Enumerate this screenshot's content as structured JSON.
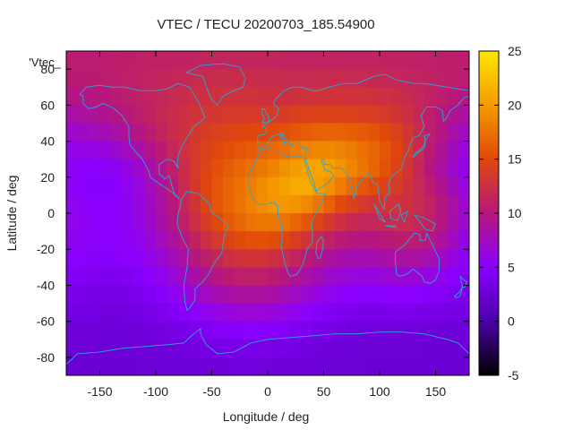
{
  "chart_data": {
    "type": "heatmap",
    "title": "VTEC / TECU 20200703_185.54900",
    "legend_label": "'Vtec_",
    "xlabel": "Longitude / deg",
    "ylabel": "Latitude / deg",
    "xlim": [
      -180,
      180
    ],
    "ylim": [
      -90,
      90
    ],
    "x_ticks": [
      -150,
      -100,
      -50,
      0,
      50,
      100,
      150
    ],
    "y_ticks": [
      -80,
      -60,
      -40,
      -20,
      0,
      20,
      40,
      60,
      80
    ],
    "colorbar": {
      "range": [
        -5,
        25
      ],
      "ticks": [
        -5,
        0,
        5,
        10,
        15,
        20,
        25
      ],
      "palette": [
        "#000000",
        "#4b00a8",
        "#8a00ff",
        "#b7177a",
        "#e0480a",
        "#f59a00",
        "#ffe800"
      ]
    },
    "value_grid": {
      "lat": [
        85,
        75,
        65,
        55,
        45,
        35,
        25,
        15,
        5,
        -5,
        -15,
        -25,
        -35,
        -45,
        -55,
        -65,
        -75,
        -85
      ],
      "lon": [
        -175,
        -165,
        -155,
        -145,
        -135,
        -125,
        -115,
        -105,
        -95,
        -85,
        -75,
        -65,
        -55,
        -45,
        -35,
        -25,
        -15,
        -5,
        5,
        15,
        25,
        35,
        45,
        55,
        65,
        75,
        85,
        95,
        105,
        115,
        125,
        135,
        145,
        155,
        165,
        175
      ],
      "z": [
        [
          10.5,
          10.5,
          10.5,
          10.5,
          10.6,
          10.7,
          10.8,
          10.9,
          10.9,
          11.0,
          11.1,
          11.2,
          11.3,
          11.3,
          11.4,
          11.4,
          11.4,
          11.3,
          11.3,
          11.2,
          11.2,
          11.2,
          11.2,
          11.2,
          11.2,
          11.2,
          11.2,
          11.2,
          11.1,
          11.1,
          11.0,
          10.9,
          10.8,
          10.7,
          10.6,
          10.6
        ],
        [
          10.4,
          10.3,
          10.4,
          10.5,
          10.6,
          10.8,
          11.0,
          11.2,
          11.3,
          11.5,
          11.7,
          11.9,
          12.0,
          12.1,
          12.1,
          12.1,
          12.1,
          12.0,
          11.9,
          11.9,
          11.8,
          11.8,
          11.9,
          11.9,
          11.9,
          11.8,
          11.8,
          11.7,
          11.6,
          11.5,
          11.4,
          11.3,
          11.1,
          10.9,
          10.7,
          10.5
        ],
        [
          9.5,
          9.6,
          9.8,
          10.0,
          10.3,
          10.6,
          10.9,
          11.2,
          11.5,
          11.8,
          12.1,
          12.4,
          12.5,
          12.7,
          12.8,
          12.8,
          12.8,
          12.7,
          12.6,
          12.6,
          12.7,
          12.8,
          12.9,
          12.9,
          12.9,
          12.9,
          12.9,
          12.7,
          12.5,
          12.3,
          11.9,
          11.5,
          11.0,
          10.6,
          10.1,
          9.7
        ],
        [
          8.3,
          8.6,
          8.9,
          9.2,
          9.6,
          10.1,
          10.6,
          11.1,
          11.6,
          12.1,
          12.5,
          12.9,
          13.2,
          13.4,
          13.5,
          13.6,
          13.6,
          13.6,
          13.7,
          13.8,
          14.1,
          14.3,
          14.4,
          14.4,
          14.3,
          14.3,
          14.1,
          13.9,
          13.6,
          13.1,
          12.4,
          11.6,
          10.8,
          10.0,
          9.2,
          8.6
        ],
        [
          7.0,
          7.2,
          7.5,
          7.9,
          8.4,
          9.0,
          9.7,
          10.5,
          11.3,
          12.0,
          12.7,
          13.3,
          13.8,
          14.2,
          14.5,
          14.7,
          14.8,
          14.9,
          15.1,
          15.5,
          15.9,
          16.3,
          16.6,
          16.7,
          16.6,
          16.4,
          16.1,
          15.6,
          15.0,
          14.2,
          13.2,
          12.0,
          10.7,
          9.6,
          8.4,
          7.5
        ],
        [
          5.9,
          5.9,
          6.0,
          6.3,
          6.8,
          7.5,
          8.3,
          9.3,
          10.4,
          11.5,
          12.5,
          13.5,
          14.2,
          14.9,
          15.4,
          15.8,
          16.1,
          16.5,
          16.9,
          17.4,
          18.1,
          18.6,
          18.9,
          18.9,
          18.6,
          18.2,
          17.5,
          16.8,
          15.9,
          14.8,
          13.5,
          12.0,
          10.4,
          8.9,
          7.6,
          6.5
        ],
        [
          5.3,
          5.1,
          5.0,
          5.2,
          5.5,
          6.2,
          7.0,
          8.1,
          9.4,
          10.8,
          12.2,
          13.5,
          14.5,
          15.5,
          16.2,
          16.8,
          17.4,
          17.9,
          18.6,
          19.4,
          20.1,
          20.6,
          20.7,
          20.3,
          19.6,
          18.7,
          17.7,
          16.7,
          15.6,
          14.4,
          13.1,
          11.6,
          10.0,
          8.5,
          7.1,
          6.0
        ],
        [
          5.3,
          5.0,
          4.8,
          4.8,
          5.1,
          5.6,
          6.4,
          7.5,
          8.8,
          10.3,
          11.9,
          13.4,
          14.7,
          15.8,
          16.7,
          17.5,
          18.3,
          19.1,
          19.9,
          20.6,
          21.0,
          21.0,
          20.4,
          19.4,
          18.2,
          17.0,
          15.9,
          15.1,
          14.4,
          13.7,
          12.9,
          11.8,
          10.5,
          9.1,
          7.7,
          6.4
        ],
        [
          5.6,
          5.3,
          5.0,
          5.0,
          5.1,
          5.5,
          6.2,
          7.2,
          8.5,
          10.0,
          11.6,
          13.1,
          14.5,
          15.8,
          16.8,
          17.7,
          18.5,
          19.2,
          19.7,
          19.9,
          19.6,
          18.9,
          17.8,
          16.5,
          15.2,
          14.2,
          13.5,
          13.1,
          13.0,
          12.9,
          12.6,
          12.0,
          11.1,
          9.8,
          8.4,
          7.0
        ],
        [
          5.7,
          5.4,
          5.2,
          5.1,
          5.2,
          5.5,
          6.1,
          7.0,
          8.2,
          9.5,
          10.9,
          12.4,
          13.8,
          15.0,
          16.1,
          16.9,
          17.6,
          17.9,
          17.9,
          17.6,
          16.8,
          15.8,
          14.6,
          13.5,
          12.5,
          11.9,
          11.5,
          11.5,
          11.8,
          12.0,
          12.0,
          11.6,
          10.9,
          9.8,
          8.3,
          6.9
        ],
        [
          5.5,
          5.3,
          5.2,
          5.1,
          5.1,
          5.3,
          5.8,
          6.5,
          7.5,
          8.6,
          9.8,
          11.1,
          12.4,
          13.5,
          14.4,
          15.1,
          15.4,
          15.5,
          15.3,
          14.7,
          13.9,
          12.9,
          11.9,
          11.0,
          10.3,
          9.9,
          9.7,
          9.8,
          10.1,
          10.4,
          10.5,
          10.3,
          9.7,
          8.7,
          7.4,
          6.2
        ],
        [
          5.0,
          4.9,
          4.8,
          4.7,
          4.7,
          4.9,
          5.3,
          5.9,
          6.7,
          7.6,
          8.6,
          9.7,
          10.7,
          11.6,
          12.4,
          12.9,
          13.1,
          13.0,
          12.6,
          12.0,
          11.2,
          10.3,
          9.5,
          8.8,
          8.3,
          8.0,
          7.9,
          8.0,
          8.3,
          8.5,
          8.6,
          8.5,
          8.0,
          7.2,
          6.2,
          5.4
        ],
        [
          4.4,
          4.3,
          4.2,
          4.1,
          4.1,
          4.2,
          4.6,
          5.1,
          5.7,
          6.4,
          7.3,
          8.2,
          9.0,
          9.8,
          10.4,
          10.8,
          10.9,
          10.8,
          10.4,
          9.8,
          9.1,
          8.4,
          7.7,
          7.1,
          6.7,
          6.4,
          6.3,
          6.3,
          6.5,
          6.7,
          6.7,
          6.5,
          6.1,
          5.6,
          4.9,
          4.5
        ],
        [
          3.8,
          3.7,
          3.6,
          3.6,
          3.6,
          3.7,
          3.9,
          4.3,
          4.8,
          5.4,
          6.0,
          6.7,
          7.3,
          7.9,
          8.3,
          8.6,
          8.7,
          8.6,
          8.3,
          7.8,
          7.3,
          6.7,
          6.1,
          5.6,
          5.3,
          5.0,
          4.9,
          4.9,
          5.0,
          5.1,
          5.1,
          5.0,
          4.8,
          4.5,
          4.1,
          3.9
        ],
        [
          3.3,
          3.2,
          3.2,
          3.1,
          3.1,
          3.2,
          3.3,
          3.6,
          3.9,
          4.3,
          4.7,
          5.2,
          5.6,
          6.0,
          6.3,
          6.5,
          6.6,
          6.5,
          6.3,
          6.0,
          5.6,
          5.2,
          4.8,
          4.4,
          4.1,
          3.9,
          3.8,
          3.8,
          3.8,
          3.9,
          3.9,
          3.8,
          3.7,
          3.5,
          3.3,
          3.3
        ],
        [
          2.9,
          2.9,
          2.9,
          2.8,
          2.8,
          2.8,
          2.9,
          3.1,
          3.3,
          3.5,
          3.8,
          4.0,
          4.3,
          4.5,
          4.7,
          4.8,
          4.9,
          4.8,
          4.7,
          4.5,
          4.3,
          4.0,
          3.7,
          3.5,
          3.3,
          3.1,
          3.0,
          3.0,
          3.0,
          3.0,
          3.0,
          3.0,
          2.9,
          2.9,
          2.8,
          2.9
        ],
        [
          2.6,
          2.6,
          2.6,
          2.6,
          2.6,
          2.6,
          2.6,
          2.7,
          2.8,
          3.0,
          3.1,
          3.3,
          3.4,
          3.6,
          3.7,
          3.7,
          3.8,
          3.7,
          3.6,
          3.5,
          3.4,
          3.2,
          3.0,
          2.9,
          2.8,
          2.7,
          2.6,
          2.6,
          2.6,
          2.6,
          2.6,
          2.6,
          2.5,
          2.5,
          2.5,
          2.6
        ],
        [
          2.5,
          2.5,
          2.5,
          2.5,
          2.5,
          2.5,
          2.6,
          2.6,
          2.7,
          2.7,
          2.8,
          2.8,
          2.9,
          2.9,
          3.0,
          3.0,
          3.0,
          3.0,
          3.0,
          2.9,
          2.9,
          2.8,
          2.7,
          2.7,
          2.6,
          2.6,
          2.6,
          2.5,
          2.5,
          2.5,
          2.5,
          2.5,
          2.5,
          2.5,
          2.5,
          2.5
        ]
      ]
    },
    "coastline_color": "#2aa7d6",
    "grid": false
  }
}
